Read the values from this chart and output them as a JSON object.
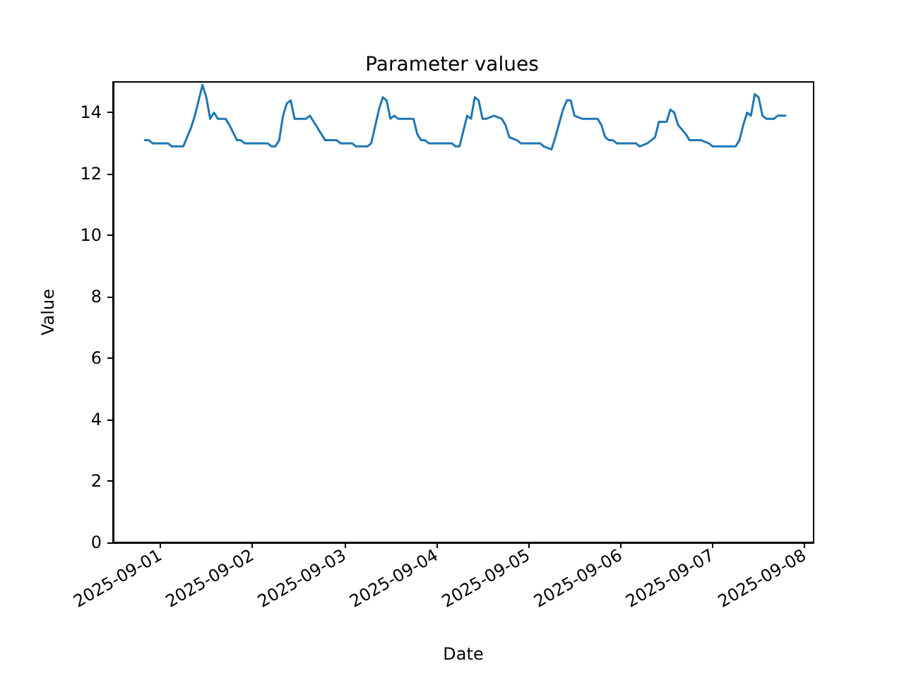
{
  "chart_data": {
    "type": "line",
    "title": "Parameter values",
    "xlabel": "Date",
    "ylabel": "Value",
    "x": [
      "2025-08-31T20:00",
      "2025-08-31T21:00",
      "2025-08-31T22:00",
      "2025-09-01T02:00",
      "2025-09-01T03:00",
      "2025-09-01T06:00",
      "2025-09-01T08:00",
      "2025-09-01T09:00",
      "2025-09-01T11:00",
      "2025-09-01T12:00",
      "2025-09-01T13:00",
      "2025-09-01T14:00",
      "2025-09-01T15:00",
      "2025-09-01T17:00",
      "2025-09-01T18:00",
      "2025-09-01T20:00",
      "2025-09-01T21:00",
      "2025-09-01T22:00",
      "2025-09-02T04:00",
      "2025-09-02T05:00",
      "2025-09-02T06:00",
      "2025-09-02T07:00",
      "2025-09-02T08:00",
      "2025-09-02T09:00",
      "2025-09-02T10:00",
      "2025-09-02T11:00",
      "2025-09-02T14:00",
      "2025-09-02T15:00",
      "2025-09-02T16:00",
      "2025-09-02T18:00",
      "2025-09-02T19:00",
      "2025-09-02T22:00",
      "2025-09-02T23:00",
      "2025-09-03T02:00",
      "2025-09-03T03:00",
      "2025-09-03T06:00",
      "2025-09-03T07:00",
      "2025-09-03T09:00",
      "2025-09-03T10:00",
      "2025-09-03T11:00",
      "2025-09-03T12:00",
      "2025-09-03T13:00",
      "2025-09-03T14:00",
      "2025-09-03T18:00",
      "2025-09-03T19:00",
      "2025-09-03T20:00",
      "2025-09-03T21:00",
      "2025-09-03T22:00",
      "2025-09-04T04:00",
      "2025-09-04T05:00",
      "2025-09-04T06:00",
      "2025-09-04T08:00",
      "2025-09-04T09:00",
      "2025-09-04T10:00",
      "2025-09-04T11:00",
      "2025-09-04T12:00",
      "2025-09-04T13:00",
      "2025-09-04T15:00",
      "2025-09-04T17:00",
      "2025-09-04T18:00",
      "2025-09-04T19:00",
      "2025-09-04T21:00",
      "2025-09-04T22:00",
      "2025-09-05T03:00",
      "2025-09-05T04:00",
      "2025-09-05T06:00",
      "2025-09-05T07:00",
      "2025-09-05T09:00",
      "2025-09-05T10:00",
      "2025-09-05T11:00",
      "2025-09-05T12:00",
      "2025-09-05T14:00",
      "2025-09-05T18:00",
      "2025-09-05T19:00",
      "2025-09-05T20:00",
      "2025-09-05T21:00",
      "2025-09-05T22:00",
      "2025-09-05T23:00",
      "2025-09-06T04:00",
      "2025-09-06T05:00",
      "2025-09-06T07:00",
      "2025-09-06T08:00",
      "2025-09-06T09:00",
      "2025-09-06T10:00",
      "2025-09-06T12:00",
      "2025-09-06T13:00",
      "2025-09-06T14:00",
      "2025-09-06T15:00",
      "2025-09-06T17:00",
      "2025-09-06T18:00",
      "2025-09-06T21:00",
      "2025-09-06T23:00",
      "2025-09-07T00:00",
      "2025-09-07T06:00",
      "2025-09-07T07:00",
      "2025-09-07T08:00",
      "2025-09-07T09:00",
      "2025-09-07T10:00",
      "2025-09-07T11:00",
      "2025-09-07T12:00",
      "2025-09-07T13:00",
      "2025-09-07T14:00",
      "2025-09-07T16:00",
      "2025-09-07T17:00",
      "2025-09-07T19:00"
    ],
    "series": [
      {
        "color": "#1f77b4",
        "values": [
          13.1,
          13.1,
          13.0,
          13.0,
          12.9,
          12.9,
          13.5,
          13.9,
          14.9,
          14.5,
          13.8,
          14.0,
          13.8,
          13.8,
          13.6,
          13.1,
          13.1,
          13.0,
          13.0,
          12.9,
          12.9,
          13.1,
          13.9,
          14.3,
          14.4,
          13.8,
          13.8,
          13.9,
          13.7,
          13.3,
          13.1,
          13.1,
          13.0,
          13.0,
          12.9,
          12.9,
          13.0,
          14.1,
          14.5,
          14.4,
          13.8,
          13.9,
          13.8,
          13.8,
          13.3,
          13.1,
          13.1,
          13.0,
          13.0,
          12.9,
          12.9,
          13.9,
          13.8,
          14.5,
          14.4,
          13.8,
          13.8,
          13.9,
          13.8,
          13.6,
          13.2,
          13.1,
          13.0,
          13.0,
          12.9,
          12.8,
          13.2,
          14.1,
          14.4,
          14.4,
          13.9,
          13.8,
          13.8,
          13.6,
          13.2,
          13.1,
          13.1,
          13.0,
          13.0,
          12.9,
          13.0,
          13.1,
          13.2,
          13.7,
          13.7,
          14.1,
          14.0,
          13.6,
          13.3,
          13.1,
          13.1,
          13.0,
          12.9,
          12.9,
          13.1,
          13.6,
          14.0,
          13.9,
          14.6,
          14.5,
          13.9,
          13.8,
          13.8,
          13.9,
          13.9
        ]
      }
    ],
    "xlim": [
      "2025-08-31T11:40",
      "2025-09-08T02:20"
    ],
    "xticks": [
      "2025-09-01",
      "2025-09-02",
      "2025-09-03",
      "2025-09-04",
      "2025-09-05",
      "2025-09-06",
      "2025-09-07",
      "2025-09-08"
    ],
    "ylim": [
      0,
      15
    ],
    "yticks": [
      0,
      2,
      4,
      6,
      8,
      10,
      12,
      14
    ],
    "grid": false,
    "marker": "none",
    "line_style": "solid"
  }
}
